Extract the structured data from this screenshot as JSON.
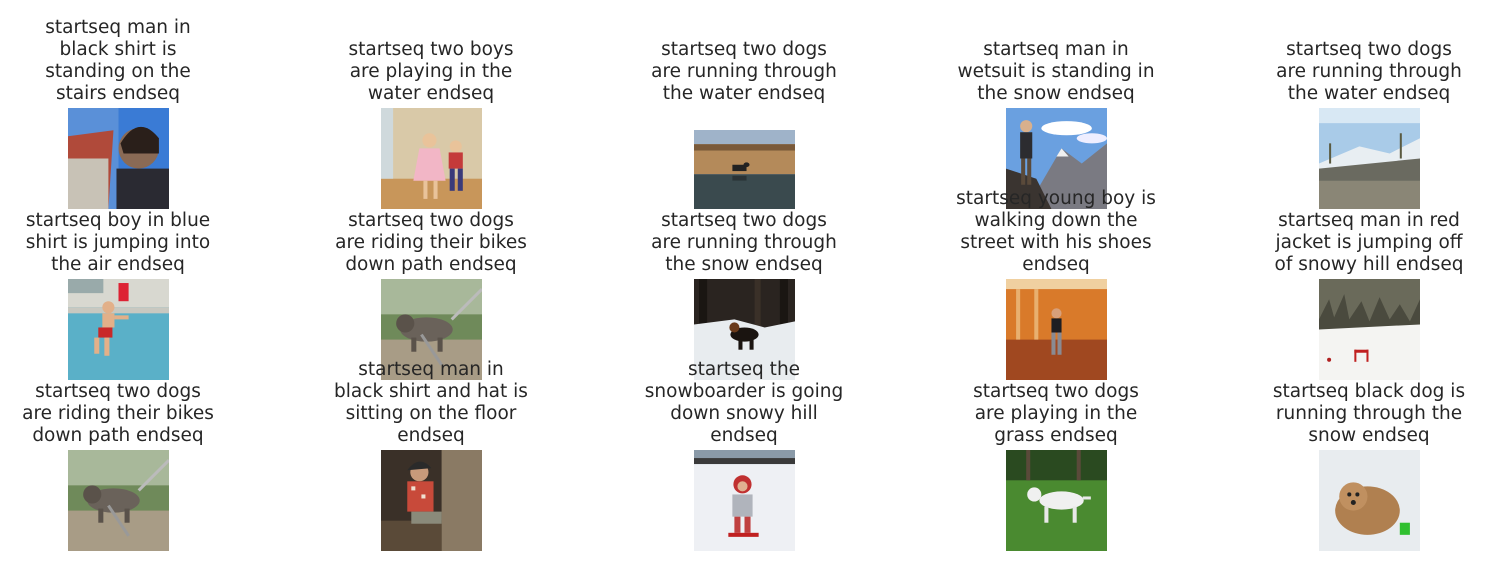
{
  "figure": {
    "items": [
      {
        "caption": "startseq man in black shirt is standing on the stairs endseq",
        "scene": "man-portrait"
      },
      {
        "caption": "startseq two boys are playing in the water endseq",
        "scene": "kids-dancing"
      },
      {
        "caption": "startseq two dogs are running through the water endseq",
        "scene": "dog-pond"
      },
      {
        "caption": "startseq man in wetsuit is standing in the snow endseq",
        "scene": "hiker-mountain"
      },
      {
        "caption": "startseq two dogs are running through the water endseq",
        "scene": "snowy-field"
      },
      {
        "caption": "startseq boy in blue shirt is jumping into the air endseq",
        "scene": "boy-pool"
      },
      {
        "caption": "startseq two dogs are riding their bikes down path endseq",
        "scene": "dog-chain"
      },
      {
        "caption": "startseq two dogs are running through the snow endseq",
        "scene": "dog-snow-woods"
      },
      {
        "caption": "startseq young boy is walking down the street with his shoes endseq",
        "scene": "girl-orange-room"
      },
      {
        "caption": "startseq man in red jacket is jumping off of snowy hill endseq",
        "scene": "snowy-hill"
      },
      {
        "caption": "startseq two dogs are riding their bikes down path endseq",
        "scene": "dog-chain"
      },
      {
        "caption": "startseq man in black shirt and hat is sitting on the floor endseq",
        "scene": "man-sitting"
      },
      {
        "caption": "startseq the snowboarder is going down snowy hill endseq",
        "scene": "child-snow"
      },
      {
        "caption": "startseq two dogs are playing in the grass endseq",
        "scene": "dog-grass"
      },
      {
        "caption": "startseq black dog is running through the snow endseq",
        "scene": "shaggy-dog-snow"
      }
    ]
  }
}
